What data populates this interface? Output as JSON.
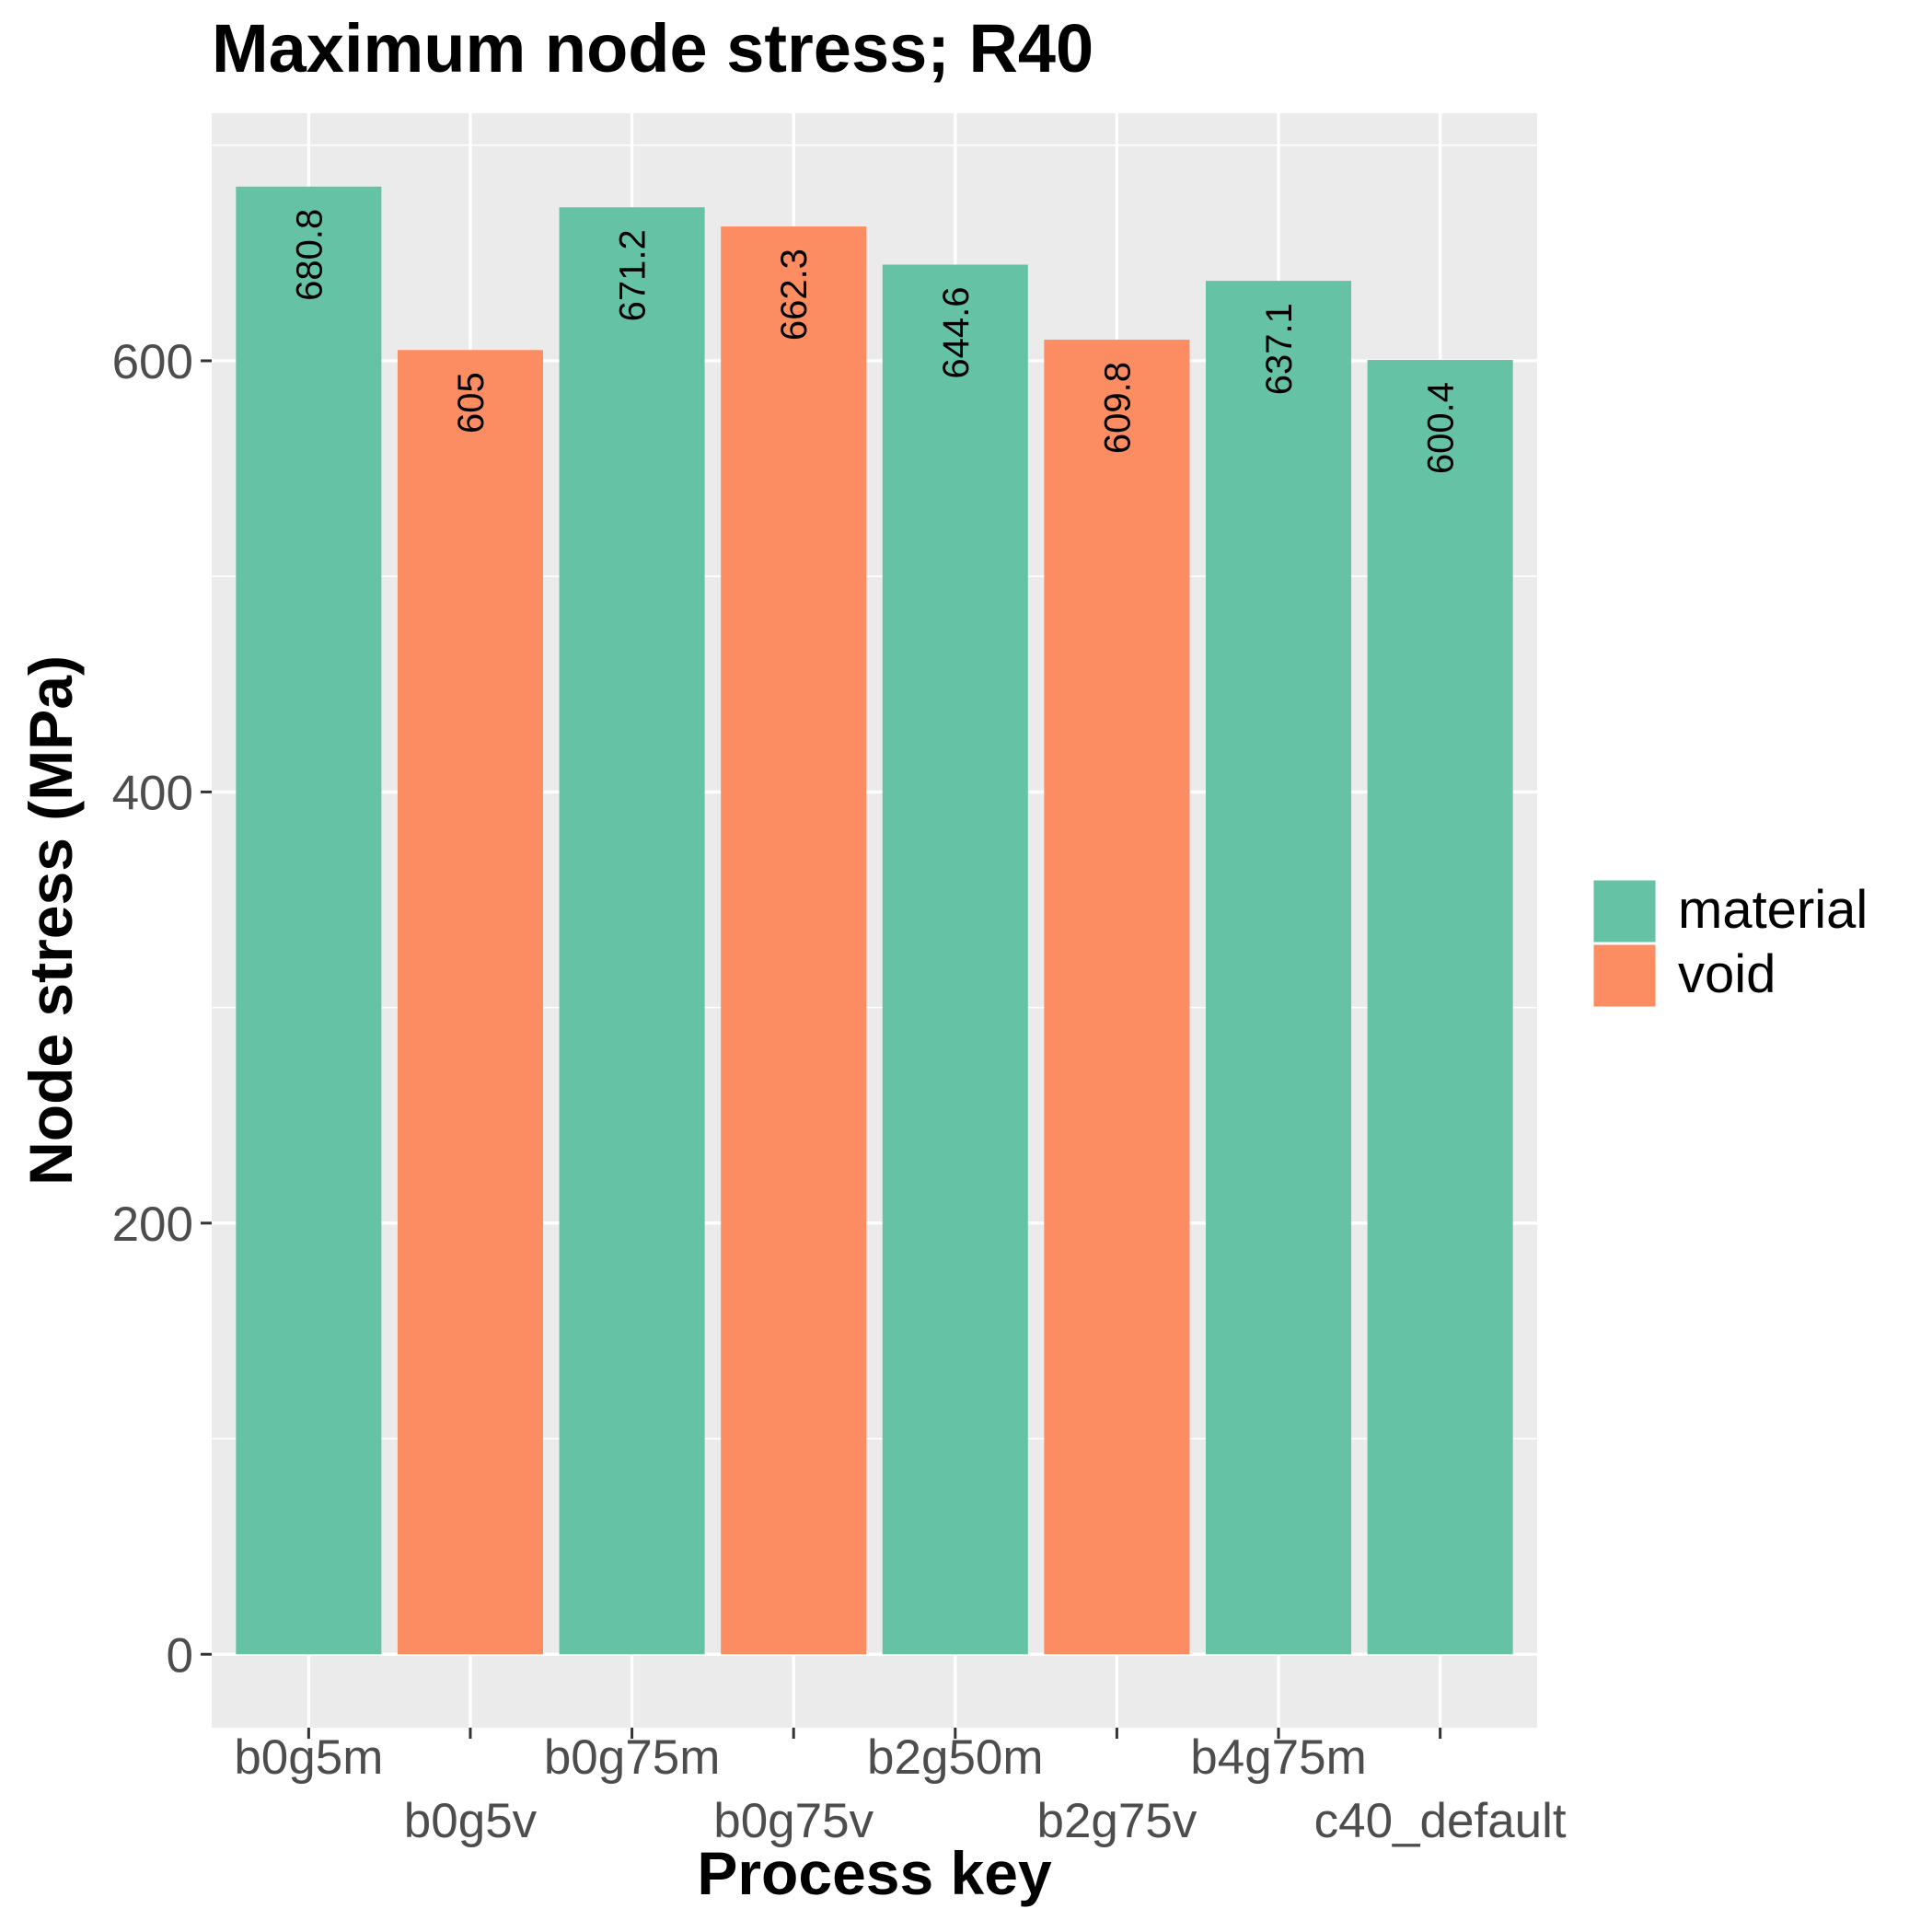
{
  "chart_data": {
    "type": "bar",
    "title": "Maximum node stress; R40",
    "xlabel": "Process key",
    "ylabel": "Node stress (MPa)",
    "categories": [
      "b0g5m",
      "b0g5v",
      "b0g75m",
      "b0g75v",
      "b2g50m",
      "b2g75v",
      "b4g75m",
      "c40_default"
    ],
    "values": [
      680.8,
      605,
      671.2,
      662.3,
      644.6,
      609.8,
      637.1,
      600.4
    ],
    "value_labels": [
      "680.8",
      "605",
      "671.2",
      "662.3",
      "644.6",
      "609.8",
      "637.1",
      "600.4"
    ],
    "groups": [
      "material",
      "void",
      "material",
      "void",
      "material",
      "void",
      "material",
      "material"
    ],
    "legend": {
      "position": "right",
      "entries": [
        {
          "name": "material",
          "color": "#66c2a5"
        },
        {
          "name": "void",
          "color": "#fc8d62"
        }
      ]
    },
    "y_ticks": [
      0,
      200,
      400,
      600
    ],
    "ylim": [
      -34.04,
      714.84
    ],
    "grid": true,
    "colors": {
      "panel": "#ebebeb",
      "grid": "#ffffff",
      "axis_text": "#4d4d4d",
      "text": "#000000"
    }
  }
}
